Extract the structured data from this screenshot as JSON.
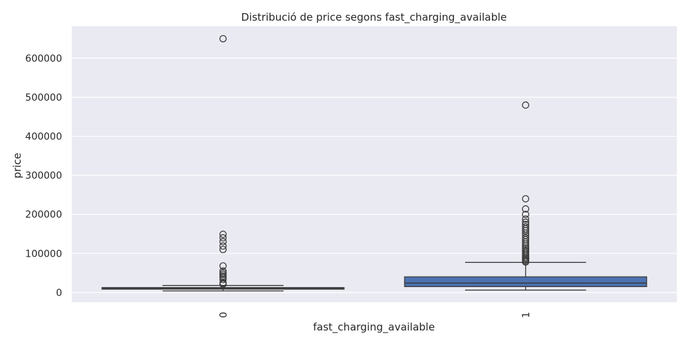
{
  "chart_data": {
    "type": "box",
    "title": "Distribució de price segons fast_charging_available",
    "xlabel": "fast_charging_available",
    "ylabel": "price",
    "ylim": [
      -25000,
      682000
    ],
    "yticks": [
      0,
      100000,
      200000,
      300000,
      400000,
      500000,
      600000
    ],
    "grid": true,
    "categories": [
      "0",
      "1"
    ],
    "boxes": [
      {
        "category": "0",
        "whisker_low": 4000,
        "q1": 8500,
        "median": 10500,
        "q3": 12500,
        "whisker_high": 18000,
        "outliers": [
          21000,
          23000,
          25000,
          33000,
          38000,
          42000,
          46000,
          50000,
          55000,
          68000,
          110000,
          119000,
          130000,
          140000,
          149000,
          650000
        ]
      },
      {
        "category": "1",
        "whisker_low": 6000,
        "q1": 15000,
        "median": 24000,
        "q3": 40000,
        "whisker_high": 77000,
        "outliers": [
          78000,
          81000,
          84000,
          87000,
          90000,
          94000,
          98000,
          102000,
          106000,
          110000,
          114000,
          119000,
          124000,
          129000,
          135000,
          140000,
          146000,
          152000,
          158000,
          163000,
          168000,
          174000,
          180000,
          188000,
          200000,
          214000,
          240000,
          480000
        ]
      }
    ],
    "colors": {
      "background": "#eaeaf2",
      "grid": "#ffffff",
      "box_0": "#4c72b0",
      "box_1": "#4c72b0",
      "line": "#3b3b3b"
    }
  }
}
